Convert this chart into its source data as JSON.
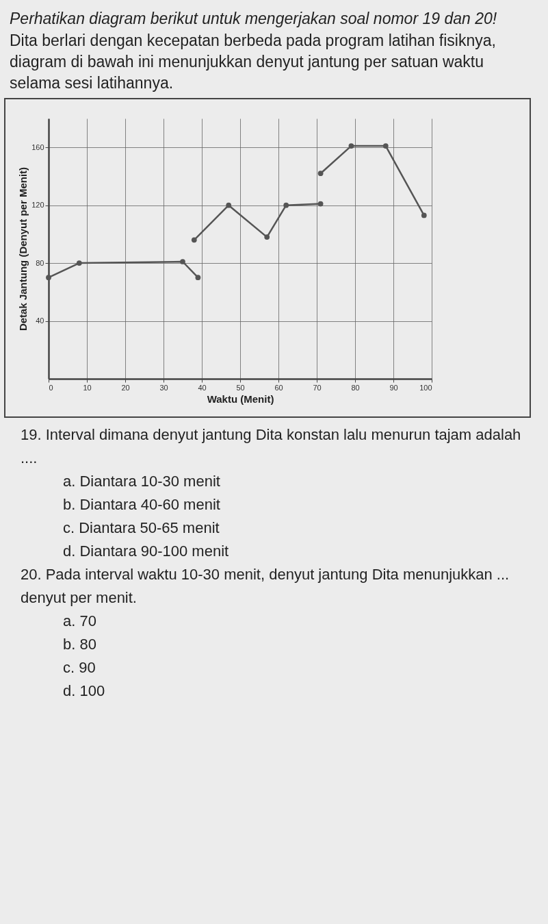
{
  "chart_data": {
    "type": "line",
    "title": "Perhatikan diagram berikut untuk mengerjakan soal nomor 19 dan 20!",
    "subtitle": "Dita berlari dengan kecepatan berbeda pada program latihan fisiknya, diagram di bawah ini menunjukkan denyut jantung per satuan waktu selama sesi latihannya.",
    "xlabel": "Waktu (Menit)",
    "ylabel": "Detak Jantung (Denyut per Menit)",
    "series": [
      {
        "color": "#555555",
        "x": [
          0,
          8,
          35,
          39
        ],
        "values": [
          70,
          80,
          81,
          70
        ]
      },
      {
        "color": "#555555",
        "x": [
          38,
          47,
          57,
          62,
          71
        ],
        "values": [
          96,
          120,
          98,
          120,
          121
        ]
      },
      {
        "color": "#555555",
        "x": [
          71,
          79,
          88,
          98
        ],
        "values": [
          142,
          161,
          161,
          113
        ]
      }
    ],
    "xlim": [
      0,
      100
    ],
    "xticks": [
      0,
      10,
      20,
      30,
      40,
      50,
      60,
      70,
      80,
      90,
      100
    ],
    "ylim": [
      0,
      180
    ],
    "yticks": [
      40,
      80,
      120,
      160
    ],
    "grid": true,
    "marker": "circle",
    "line_style": "solid",
    "annotations": [
      "19. Interval dimana denyut jantung Dita konstan lalu menurun tajam adalah ....",
      "a. Diantara 10-30 menit",
      "b. Diantara 40-60 menit",
      "c. Diantara 50-65 menit",
      "d. Diantara 90-100 menit",
      "20. Pada interval waktu 10-30 menit, denyut jantung Dita menunjukkan ... denyut per menit.",
      "a. 70",
      "b. 80",
      "c. 90",
      "d. 100"
    ]
  }
}
